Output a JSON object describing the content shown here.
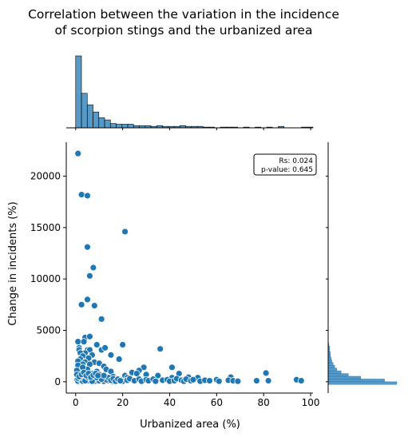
{
  "chart_data": {
    "type": "scatter",
    "title_line1": "Correlation between the variation in the incidence",
    "title_line2": "of scorpion stings and the urbanized area",
    "xlabel": "Urbanized area (%)",
    "ylabel": "Change in incidents (%)",
    "xlim": [
      -4,
      101
    ],
    "ylim": [
      -1100,
      23300
    ],
    "xticks": [
      0,
      20,
      40,
      60,
      80,
      100
    ],
    "yticks": [
      0,
      5000,
      10000,
      15000,
      20000
    ],
    "annotation": {
      "line1": "Rs: 0.024",
      "line2": "p-value: 0.645",
      "placement": "top-right"
    },
    "color": "#1f77b4",
    "points": [
      [
        1,
        22200
      ],
      [
        2.5,
        18200
      ],
      [
        5,
        18100
      ],
      [
        21,
        14600
      ],
      [
        5,
        13100
      ],
      [
        7.5,
        11100
      ],
      [
        6,
        10300
      ],
      [
        5,
        8000
      ],
      [
        2.5,
        7500
      ],
      [
        8,
        7400
      ],
      [
        11,
        6100
      ],
      [
        4,
        4300
      ],
      [
        6,
        4400
      ],
      [
        1,
        3900
      ],
      [
        3.5,
        3900
      ],
      [
        9,
        3600
      ],
      [
        20,
        3600
      ],
      [
        36,
        3200
      ],
      [
        1.5,
        3300
      ],
      [
        1.5,
        3100
      ],
      [
        5,
        3100
      ],
      [
        6,
        3100
      ],
      [
        11,
        3100
      ],
      [
        12.5,
        3300
      ],
      [
        4,
        2800
      ],
      [
        2,
        2800
      ],
      [
        7,
        2600
      ],
      [
        15,
        2600
      ],
      [
        3,
        2500
      ],
      [
        5.5,
        2300
      ],
      [
        18.5,
        2200
      ],
      [
        2,
        2200
      ],
      [
        1,
        2000
      ],
      [
        8,
        1900
      ],
      [
        4,
        1900
      ],
      [
        10,
        1800
      ],
      [
        6,
        1700
      ],
      [
        3,
        1700
      ],
      [
        1,
        1600
      ],
      [
        41,
        1400
      ],
      [
        29,
        1400
      ],
      [
        12,
        1500
      ],
      [
        13,
        1200
      ],
      [
        27,
        1100
      ],
      [
        15,
        1000
      ],
      [
        9,
        1000
      ],
      [
        2,
        1000
      ],
      [
        24,
        900
      ],
      [
        26,
        800
      ],
      [
        44,
        800
      ],
      [
        30,
        700
      ],
      [
        21,
        600
      ],
      [
        35,
        600
      ],
      [
        81,
        850
      ],
      [
        66,
        450
      ],
      [
        48,
        450
      ],
      [
        52,
        400
      ],
      [
        41,
        400
      ],
      [
        22,
        400
      ],
      [
        16,
        500
      ],
      [
        10,
        500
      ],
      [
        6,
        500
      ],
      [
        3,
        400
      ],
      [
        1,
        600
      ],
      [
        2,
        900
      ],
      [
        4,
        700
      ],
      [
        7,
        800
      ],
      [
        5,
        1200
      ],
      [
        3,
        1400
      ],
      [
        0.5,
        1100
      ],
      [
        0.5,
        200
      ],
      [
        1.5,
        100
      ],
      [
        2.5,
        300
      ],
      [
        3.5,
        150
      ],
      [
        4.5,
        50
      ],
      [
        5.5,
        250
      ],
      [
        6.5,
        100
      ],
      [
        7.5,
        350
      ],
      [
        8.5,
        200
      ],
      [
        9.5,
        50
      ],
      [
        10.5,
        300
      ],
      [
        11.5,
        150
      ],
      [
        12.5,
        400
      ],
      [
        13.5,
        100
      ],
      [
        14.5,
        250
      ],
      [
        15.5,
        50
      ],
      [
        17,
        300
      ],
      [
        18,
        100
      ],
      [
        19,
        200
      ],
      [
        20,
        50
      ],
      [
        22,
        150
      ],
      [
        23,
        300
      ],
      [
        25,
        100
      ],
      [
        27,
        250
      ],
      [
        28,
        50
      ],
      [
        30,
        200
      ],
      [
        31,
        100
      ],
      [
        33,
        250
      ],
      [
        34,
        50
      ],
      [
        37,
        150
      ],
      [
        39,
        200
      ],
      [
        40,
        50
      ],
      [
        42,
        100
      ],
      [
        43,
        300
      ],
      [
        45,
        150
      ],
      [
        46,
        50
      ],
      [
        47,
        250
      ],
      [
        49,
        100
      ],
      [
        50,
        200
      ],
      [
        53,
        50
      ],
      [
        55,
        150
      ],
      [
        57,
        100
      ],
      [
        60,
        200
      ],
      [
        61,
        50
      ],
      [
        65,
        150
      ],
      [
        67,
        100
      ],
      [
        69,
        50
      ],
      [
        77,
        100
      ],
      [
        82,
        100
      ],
      [
        94,
        200
      ],
      [
        96,
        100
      ],
      [
        1,
        50
      ],
      [
        2,
        150
      ],
      [
        3,
        50
      ],
      [
        4,
        250
      ],
      [
        5,
        100
      ],
      [
        6,
        300
      ],
      [
        7,
        150
      ],
      [
        8,
        50
      ],
      [
        9,
        250
      ],
      [
        10,
        100
      ],
      [
        11,
        350
      ],
      [
        12,
        50
      ],
      [
        13,
        200
      ],
      [
        14,
        400
      ],
      [
        15,
        150
      ],
      [
        16,
        300
      ],
      [
        17,
        50
      ],
      [
        18,
        250
      ],
      [
        19,
        100
      ],
      [
        1,
        350
      ],
      [
        2,
        450
      ],
      [
        3,
        600
      ],
      [
        4,
        100
      ],
      [
        5,
        450
      ],
      [
        6,
        650
      ],
      [
        7,
        50
      ],
      [
        8,
        550
      ],
      [
        9,
        400
      ],
      [
        10,
        700
      ],
      [
        11,
        250
      ],
      [
        12,
        600
      ],
      [
        0.5,
        700
      ],
      [
        1.5,
        500
      ],
      [
        2.5,
        700
      ],
      [
        3.5,
        900
      ],
      [
        4.5,
        600
      ],
      [
        5.5,
        800
      ],
      [
        6.5,
        450
      ],
      [
        7.5,
        650
      ],
      [
        8.5,
        800
      ],
      [
        9.5,
        600
      ]
    ],
    "x_hist_counts": [
      100,
      48,
      32,
      22,
      14,
      11,
      6,
      5,
      5,
      5,
      3,
      3,
      3,
      2,
      3,
      2,
      2,
      2,
      3,
      2,
      2,
      2,
      1,
      1,
      0,
      1,
      1,
      1,
      0,
      1,
      0,
      1,
      0,
      1,
      0,
      2,
      0,
      0,
      0,
      1,
      1
    ],
    "y_hist_counts": [
      95,
      78,
      45,
      28,
      18,
      12,
      9,
      7,
      5,
      4,
      3,
      3,
      2,
      2,
      1
    ]
  }
}
